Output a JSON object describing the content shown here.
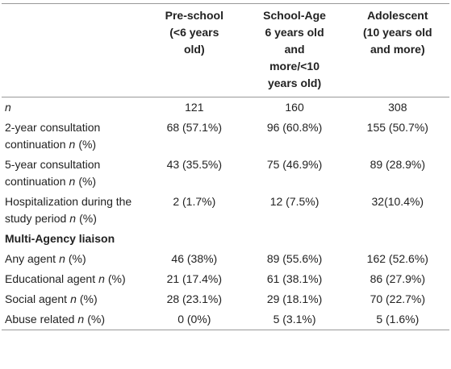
{
  "table": {
    "header": [
      [
        "Pre-school",
        "(<6 years",
        "old)"
      ],
      [
        "School-Age",
        "6 years old",
        "and",
        "more/<10",
        "years old)"
      ],
      [
        "Adolescent",
        "(10 years old",
        "and more)"
      ]
    ],
    "rows": [
      {
        "stat": "n",
        "values": [
          "121",
          "160",
          "308"
        ]
      },
      {
        "label": "2-year consultation continuation",
        "stat": "n",
        "unit": "(%)",
        "values": [
          "68 (57.1%)",
          "96 (60.8%)",
          "155 (50.7%)"
        ]
      },
      {
        "label": "5-year consultation continuation",
        "stat": "n",
        "unit": "(%)",
        "values": [
          "43 (35.5%)",
          "75 (46.9%)",
          "89 (28.9%)"
        ]
      },
      {
        "label": "Hospitalization during the study period",
        "stat": "n",
        "unit": "(%)",
        "values": [
          "2 (1.7%)",
          "12 (7.5%)",
          "32(10.4%)"
        ]
      },
      {
        "section": "Multi-Agency liaison"
      },
      {
        "label": "Any agent",
        "stat": "n",
        "unit": "(%)",
        "values": [
          "46 (38%)",
          "89 (55.6%)",
          "162 (52.6%)"
        ]
      },
      {
        "label": "Educational agent",
        "stat": "n",
        "unit": "(%)",
        "values": [
          "21 (17.4%)",
          "61 (38.1%)",
          "86 (27.9%)"
        ]
      },
      {
        "label": "Social agent",
        "stat": "n",
        "unit": "(%)",
        "values": [
          "28 (23.1%)",
          "29 (18.1%)",
          "70 (22.7%)"
        ]
      },
      {
        "label": "Abuse related",
        "stat": "n",
        "unit": "(%)",
        "values": [
          "0 (0%)",
          "5 (3.1%)",
          "5 (1.6%)"
        ]
      }
    ]
  }
}
